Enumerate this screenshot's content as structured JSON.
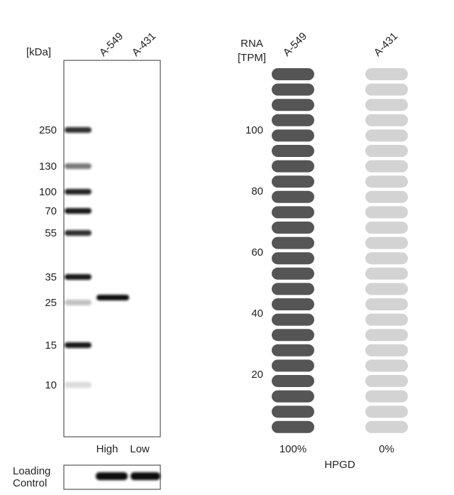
{
  "western_blot": {
    "unit_label": "[kDa]",
    "lanes": [
      "A-549",
      "A-431"
    ],
    "markers": [
      250,
      130,
      100,
      70,
      55,
      35,
      25,
      15,
      10
    ],
    "lane_levels": [
      "High",
      "Low"
    ],
    "loading_control": "Loading\nControl"
  },
  "rna": {
    "axis_label": "RNA\n[TPM]",
    "columns": [
      "A-549",
      "A-431"
    ],
    "yticks": [
      20,
      40,
      60,
      80,
      100
    ],
    "percent_labels": [
      "100%",
      "0%"
    ],
    "gene": "HPGD"
  }
}
